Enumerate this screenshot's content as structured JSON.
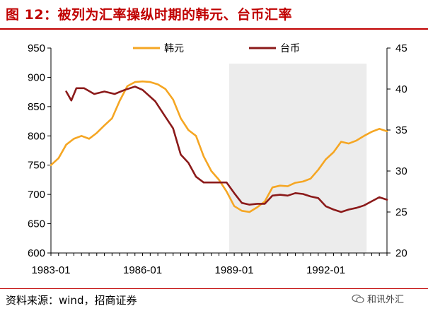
{
  "figure": {
    "title": "图 12：被列为汇率操纵时期的韩元、台币汇率",
    "source": "资料来源：wind，招商证券",
    "watermark": "和讯外汇"
  },
  "chart_data": {
    "type": "line",
    "xlabel": "",
    "ylabel_left": "",
    "ylabel_right": "",
    "x_ticks": [
      "1983-01",
      "1986-01",
      "1989-01",
      "1992-01"
    ],
    "xlim": [
      "1983-01",
      "1994-01"
    ],
    "y_left": {
      "lim": [
        600,
        950
      ],
      "ticks": [
        "600",
        "650",
        "700",
        "750",
        "800",
        "850",
        "900",
        "950"
      ]
    },
    "y_right": {
      "lim": [
        20,
        45
      ],
      "ticks": [
        "20",
        "25",
        "30",
        "35",
        "40",
        "45"
      ]
    },
    "shaded_period": {
      "start": "1988-11",
      "end": "1993-05"
    },
    "legend_position": "top-center",
    "series": [
      {
        "name": "韩元",
        "axis": "left",
        "color": "#f5a623",
        "x": [
          "1983-01",
          "1983-04",
          "1983-07",
          "1983-10",
          "1984-01",
          "1984-04",
          "1984-07",
          "1984-10",
          "1985-01",
          "1985-04",
          "1985-07",
          "1985-10",
          "1986-01",
          "1986-04",
          "1986-07",
          "1986-10",
          "1987-01",
          "1987-04",
          "1987-07",
          "1987-10",
          "1988-01",
          "1988-04",
          "1988-07",
          "1988-10",
          "1989-01",
          "1989-04",
          "1989-07",
          "1989-10",
          "1990-01",
          "1990-04",
          "1990-07",
          "1990-10",
          "1991-01",
          "1991-04",
          "1991-07",
          "1991-10",
          "1992-01",
          "1992-04",
          "1992-07",
          "1992-10",
          "1993-01",
          "1993-04",
          "1993-07",
          "1993-10",
          "1994-01"
        ],
        "values": [
          750,
          762,
          785,
          795,
          800,
          795,
          805,
          818,
          830,
          860,
          885,
          892,
          893,
          892,
          888,
          880,
          862,
          830,
          810,
          800,
          765,
          740,
          725,
          705,
          680,
          672,
          670,
          678,
          688,
          712,
          715,
          714,
          720,
          722,
          727,
          742,
          760,
          772,
          790,
          787,
          792,
          800,
          807,
          812,
          808
        ]
      },
      {
        "name": "台币",
        "axis": "right",
        "color": "#8b1a1a",
        "x": [
          "1983-07",
          "1983-09",
          "1983-11",
          "1984-02",
          "1984-06",
          "1984-10",
          "1985-02",
          "1985-06",
          "1985-10",
          "1986-01",
          "1986-06",
          "1986-10",
          "1987-01",
          "1987-04",
          "1987-07",
          "1987-10",
          "1988-01",
          "1988-04",
          "1988-07",
          "1988-10",
          "1989-01",
          "1989-04",
          "1989-07",
          "1989-10",
          "1990-01",
          "1990-04",
          "1990-07",
          "1990-10",
          "1991-01",
          "1991-04",
          "1991-07",
          "1991-10",
          "1992-01",
          "1992-04",
          "1992-07",
          "1992-10",
          "1993-01",
          "1993-04",
          "1993-07",
          "1993-10",
          "1994-01"
        ],
        "values": [
          39.7,
          38.6,
          40.1,
          40.1,
          39.4,
          39.7,
          39.4,
          39.9,
          40.3,
          39.9,
          38.5,
          36.6,
          35.2,
          32.0,
          31.0,
          29.3,
          28.6,
          28.6,
          28.6,
          28.6,
          27.3,
          26.1,
          25.9,
          26.0,
          26.0,
          27.0,
          27.1,
          27.0,
          27.3,
          27.2,
          26.9,
          26.7,
          25.7,
          25.3,
          25.0,
          25.3,
          25.5,
          25.8,
          26.3,
          26.8,
          26.5
        ]
      }
    ]
  }
}
